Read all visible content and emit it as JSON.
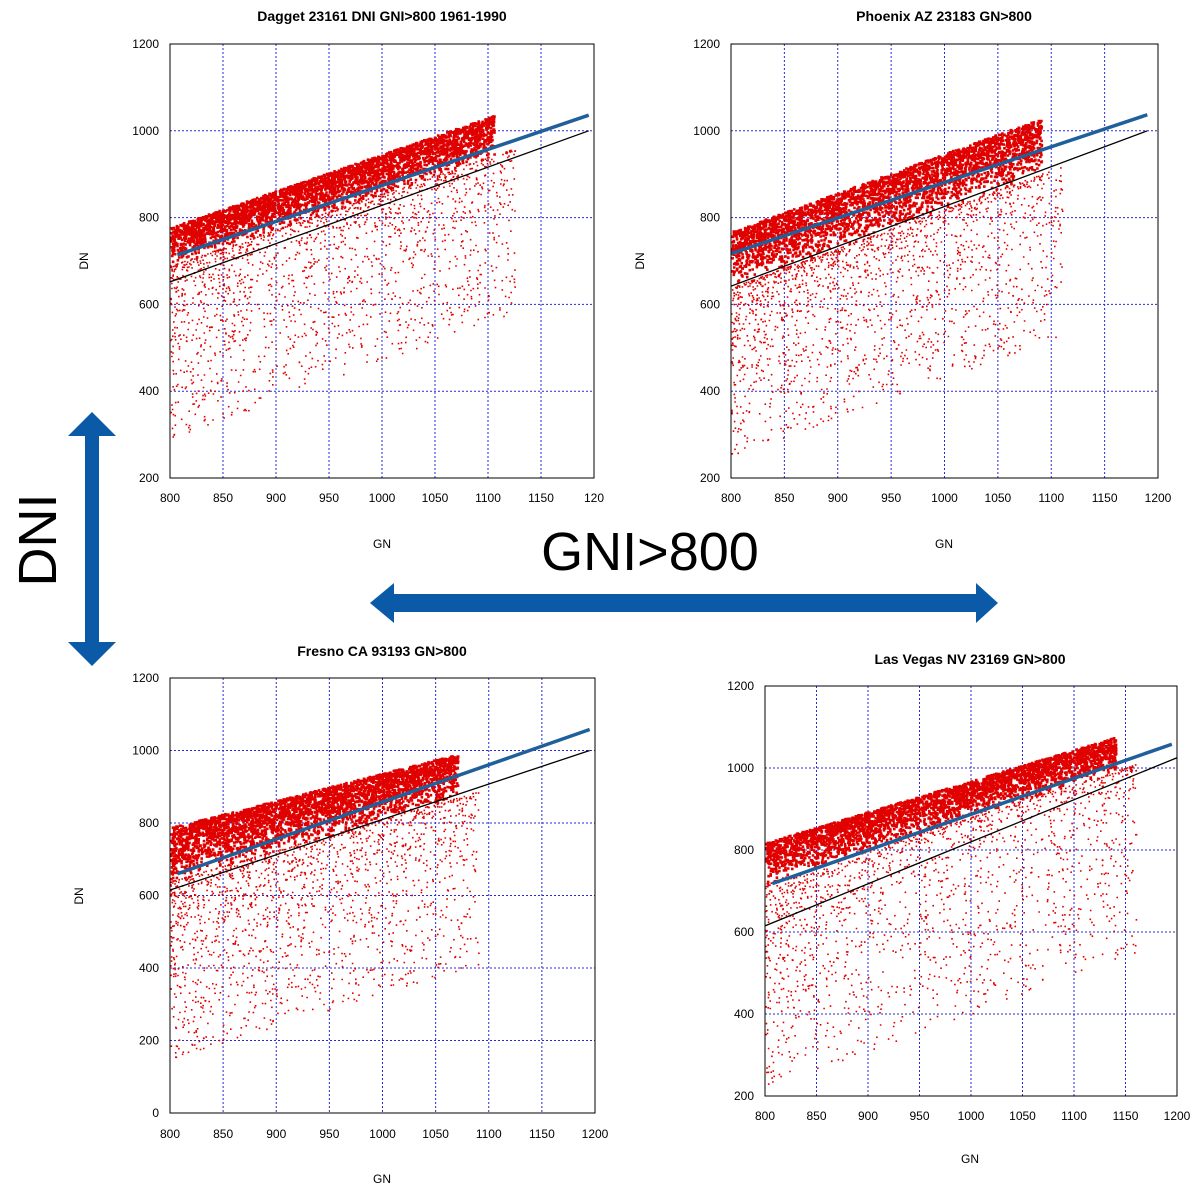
{
  "overlay": {
    "vertical_label": "DNI",
    "horizontal_label": "GNI>800",
    "arrow_color": "#0b5aa8"
  },
  "colors": {
    "points": "#e00000",
    "fit_line": "#1f5f9a",
    "identity_line": "#000000",
    "grid": "#2a2ad0"
  },
  "chart_data": [
    {
      "type": "scatter",
      "title": "Dagget 23161 DNI GNI>800 1961-1990",
      "xlabel": "GN",
      "ylabel": "DN",
      "xlim": [
        800,
        1200
      ],
      "ylim": [
        200,
        1200
      ],
      "xticks": [
        "800",
        "850",
        "900",
        "950",
        "1000",
        "1050",
        "1100",
        "1150",
        "120"
      ],
      "yticks": [
        "200",
        "400",
        "600",
        "800",
        "1000",
        "1200"
      ],
      "grid": true,
      "series": [
        {
          "kind": "points",
          "x_range": [
            800,
            1125
          ],
          "band_upper": [
            [
              800,
              780
            ],
            [
              1120,
              1050
            ]
          ],
          "band_lower": [
            [
              800,
              690
            ],
            [
              1100,
              940
            ]
          ],
          "sparse_floor": 290
        },
        {
          "kind": "fit_line",
          "x": [
            807,
            1195
          ],
          "y": [
            714,
            1036
          ]
        },
        {
          "kind": "identity_line",
          "x": [
            800,
            1195
          ],
          "y": [
            652,
            1000
          ]
        }
      ]
    },
    {
      "type": "scatter",
      "title": "Phoenix AZ 23183 GN>800",
      "xlabel": "GN",
      "ylabel": "DN",
      "xlim": [
        800,
        1200
      ],
      "ylim": [
        200,
        1200
      ],
      "xticks": [
        "800",
        "850",
        "900",
        "950",
        "1000",
        "1050",
        "1100",
        "1150",
        "1200"
      ],
      "yticks": [
        "200",
        "400",
        "600",
        "800",
        "1000",
        "1200"
      ],
      "grid": true,
      "series": [
        {
          "kind": "points",
          "x_range": [
            800,
            1110
          ],
          "band_upper": [
            [
              800,
              770
            ],
            [
              1100,
              1040
            ]
          ],
          "band_lower": [
            [
              800,
              640
            ],
            [
              1100,
              910
            ]
          ],
          "sparse_floor": 250
        },
        {
          "kind": "fit_line",
          "x": [
            800,
            1190
          ],
          "y": [
            717,
            1037
          ]
        },
        {
          "kind": "identity_line",
          "x": [
            800,
            1190
          ],
          "y": [
            642,
            1000
          ]
        }
      ]
    },
    {
      "type": "scatter",
      "title": "Fresno CA 93193 GN>800",
      "xlabel": "GN",
      "ylabel": "DN",
      "xlim": [
        800,
        1200
      ],
      "ylim": [
        0,
        1200
      ],
      "xticks": [
        "800",
        "850",
        "900",
        "950",
        "1000",
        "1050",
        "1100",
        "1150",
        "1200"
      ],
      "yticks": [
        "0",
        "200",
        "400",
        "600",
        "800",
        "1000",
        "1200"
      ],
      "grid": true,
      "series": [
        {
          "kind": "points",
          "x_range": [
            800,
            1090
          ],
          "band_upper": [
            [
              800,
              790
            ],
            [
              1080,
              1000
            ]
          ],
          "band_lower": [
            [
              800,
              640
            ],
            [
              1080,
              880
            ]
          ],
          "sparse_floor": 150
        },
        {
          "kind": "fit_line",
          "x": [
            807,
            1195
          ],
          "y": [
            660,
            1058
          ]
        },
        {
          "kind": "identity_line",
          "x": [
            800,
            1195
          ],
          "y": [
            615,
            1000
          ]
        }
      ]
    },
    {
      "type": "scatter",
      "title": "Las Vegas NV 23169 GN>800",
      "xlabel": "GN",
      "ylabel": "",
      "xlim": [
        800,
        1200
      ],
      "ylim": [
        200,
        1200
      ],
      "xticks": [
        "800",
        "850",
        "900",
        "950",
        "1000",
        "1050",
        "1100",
        "1150",
        "1200"
      ],
      "yticks": [
        "200",
        "400",
        "600",
        "800",
        "1000",
        "1200"
      ],
      "grid": true,
      "series": [
        {
          "kind": "points",
          "x_range": [
            800,
            1160
          ],
          "band_upper": [
            [
              800,
              820
            ],
            [
              1110,
              1055
            ]
          ],
          "band_lower": [
            [
              800,
              720
            ],
            [
              1110,
              970
            ]
          ],
          "sparse_floor": 220
        },
        {
          "kind": "fit_line",
          "x": [
            807,
            1195
          ],
          "y": [
            718,
            1058
          ]
        },
        {
          "kind": "identity_line",
          "x": [
            800,
            1200
          ],
          "y": [
            615,
            1025
          ]
        }
      ]
    }
  ]
}
